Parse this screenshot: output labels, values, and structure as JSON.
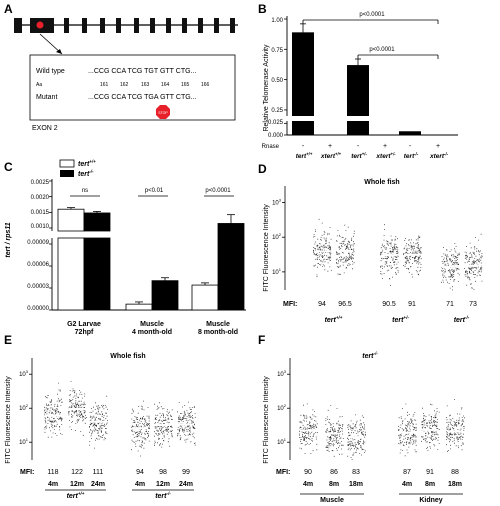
{
  "panels": {
    "A": "A",
    "B": "B",
    "C": "C",
    "D": "D",
    "E": "E",
    "F": "F"
  },
  "panel_a": {
    "wild_type_label": "Wild type",
    "wild_type_seq": "...CCG CCA TCG TGT GTT CTG...",
    "aa_label": "Aa",
    "aa_numbers": [
      "161",
      "162",
      "163",
      "164",
      "165",
      "166"
    ],
    "mutant_label": "Mutant",
    "mutant_seq": "...CCG CCA TCG TGA GTT CTG...",
    "stop_label": "STOP",
    "exon_label": "EXON 2"
  },
  "colors": {
    "bar": "#000000",
    "white_bar": "#ffffff",
    "stop": "#e8202a",
    "mfi_bar": "#ffffff",
    "dots": "#222222"
  },
  "chart_data": [
    {
      "type": "bar",
      "panel": "B",
      "ylabel": "Relative Telomerase Activity",
      "yticks_upper": [
        "0.25",
        "0.50",
        "0.75",
        "1.00"
      ],
      "yticks_lower": [
        "0.000",
        "0.025"
      ],
      "axis_break": true,
      "rnase_label": "Rnase",
      "rnase": [
        "-",
        "+",
        "-",
        "+",
        "-",
        "+"
      ],
      "groups": [
        "tert+/+",
        "xtert+/+",
        "tert+/-",
        "xtert+/-",
        "tert-/-",
        "xtert-/-"
      ],
      "group_labels": [
        {
          "base": "tert",
          "sup": "+/+"
        },
        {
          "base": "xtert",
          "sup": "+/+"
        },
        {
          "base": "tert",
          "sup": "+/-"
        },
        {
          "base": "xtert",
          "sup": "+/-"
        },
        {
          "base": "tert",
          "sup": "-/-"
        },
        {
          "base": "xtert",
          "sup": "-/-"
        }
      ],
      "values": [
        0.89,
        0.0,
        0.62,
        0.0,
        0.008,
        0.0
      ],
      "errors": [
        0.07,
        0,
        0.05,
        0,
        0.001,
        0
      ],
      "ylim": [
        0,
        1.0
      ],
      "annotations": [
        "p<0.0001",
        "p<0.0001"
      ]
    },
    {
      "type": "bar",
      "panel": "C",
      "ylabel": "tert / rps11",
      "legend": [
        {
          "base": "tert",
          "sup": "+/+"
        },
        {
          "base": "tert",
          "sup": "-/-"
        }
      ],
      "series": [
        {
          "name": "tert+/+",
          "values": [
            0.0016,
            8e-06,
            3.4e-05
          ],
          "errors": [
            5e-05,
            3e-06,
            3e-06
          ]
        },
        {
          "name": "tert-/-",
          "values": [
            0.00148,
            4e-05,
            0.000118
          ],
          "errors": [
            5e-05,
            4e-06,
            1.2e-05
          ]
        }
      ],
      "categories": [
        {
          "line1": "G2 Larvae",
          "line2": "72hpf"
        },
        {
          "line1": "Muscle",
          "line2": "4 month-old"
        },
        {
          "line1": "Muscle",
          "line2": "8 month-old"
        }
      ],
      "yticks_upper": [
        "0.0010",
        "0.0015",
        "0.0020",
        "0.0025"
      ],
      "yticks_lower": [
        "0.00000",
        "0.00003",
        "0.00006",
        "0.00009"
      ],
      "annotations": [
        "ns",
        "p<0.01",
        "p<0.0001"
      ]
    },
    {
      "type": "scatter",
      "panel": "D",
      "title": "Whole fish",
      "ylabel": "FITC Fluorescence Intensity",
      "yticks": [
        {
          "b": "10",
          "e": "1"
        },
        {
          "b": "10",
          "e": "2"
        },
        {
          "b": "10",
          "e": "3"
        }
      ],
      "yscale": "log",
      "ylim": [
        3,
        3000
      ],
      "groups": [
        {
          "label": {
            "base": "tert",
            "sup": "+/+"
          },
          "columns": [
            {
              "mfi": "94",
              "value": 39
            },
            {
              "mfi": "96.5",
              "value": 40
            }
          ]
        },
        {
          "label": {
            "base": "tert",
            "sup": "+/-"
          },
          "columns": [
            {
              "mfi": "90.5",
              "value": 30
            },
            {
              "mfi": "91",
              "value": 31
            }
          ]
        },
        {
          "label": {
            "base": "tert",
            "sup": "-/-"
          },
          "columns": [
            {
              "mfi": "71",
              "value": 14
            },
            {
              "mfi": "73",
              "value": 15
            }
          ]
        }
      ],
      "mfi_label": "MFI:"
    },
    {
      "type": "scatter",
      "panel": "E",
      "title": "Whole fish",
      "ylabel": "FITC Fluorescence Intensity",
      "yticks": [
        {
          "b": "10",
          "e": "1"
        },
        {
          "b": "10",
          "e": "2"
        },
        {
          "b": "10",
          "e": "3"
        }
      ],
      "yscale": "log",
      "ylim": [
        3,
        3000
      ],
      "groups": [
        {
          "label": {
            "base": "tert",
            "sup": "+/+"
          },
          "columns": [
            {
              "age": "4m",
              "mfi": "118",
              "value": 60
            },
            {
              "age": "12m",
              "mfi": "122",
              "value": 95
            },
            {
              "age": "24m",
              "mfi": "111",
              "value": 40
            }
          ]
        },
        {
          "label": {
            "base": "tert",
            "sup": "-/-"
          },
          "columns": [
            {
              "age": "4m",
              "mfi": "94",
              "value": 26
            },
            {
              "age": "12m",
              "mfi": "98",
              "value": 32
            },
            {
              "age": "24m",
              "mfi": "99",
              "value": 33
            }
          ]
        }
      ],
      "mfi_label": "MFI:"
    },
    {
      "type": "scatter",
      "panel": "F",
      "title": {
        "base": "tert",
        "sup": "-/-"
      },
      "ylabel": "FITC Fluorescence Intensity",
      "yticks": [
        {
          "b": "10",
          "e": "1"
        },
        {
          "b": "10",
          "e": "2"
        },
        {
          "b": "10",
          "e": "3"
        }
      ],
      "yscale": "log",
      "ylim": [
        3,
        3000
      ],
      "groups": [
        {
          "label": "Muscle",
          "columns": [
            {
              "age": "4m",
              "mfi": "90",
              "value": 22
            },
            {
              "age": "8m",
              "mfi": "86",
              "value": 18
            },
            {
              "age": "18m",
              "mfi": "83",
              "value": 14
            }
          ]
        },
        {
          "label": "Kidney",
          "columns": [
            {
              "age": "4m",
              "mfi": "87",
              "value": 19
            },
            {
              "age": "8m",
              "mfi": "91",
              "value": 23
            },
            {
              "age": "18m",
              "mfi": "88",
              "value": 21
            }
          ]
        }
      ],
      "mfi_label": "MFI:"
    }
  ]
}
